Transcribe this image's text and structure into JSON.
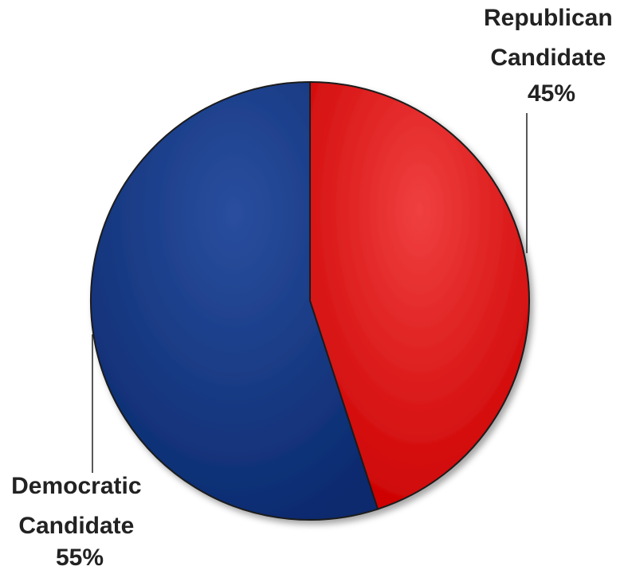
{
  "chart_data": {
    "type": "pie",
    "title": "",
    "start_angle_deg": 0,
    "direction": "clockwise",
    "legend": "none",
    "slices": [
      {
        "name": "Republican Candidate",
        "label_lines": [
          "Republican",
          "Candidate",
          "45%"
        ],
        "value": 45,
        "color": "#cc0000",
        "color_light": "#f04040"
      },
      {
        "name": "Democratic Candidate",
        "label_lines": [
          "Democratic",
          "Candidate",
          "55%"
        ],
        "value": 55,
        "color": "#0a2a6e",
        "color_light": "#2a4e9e"
      }
    ]
  }
}
